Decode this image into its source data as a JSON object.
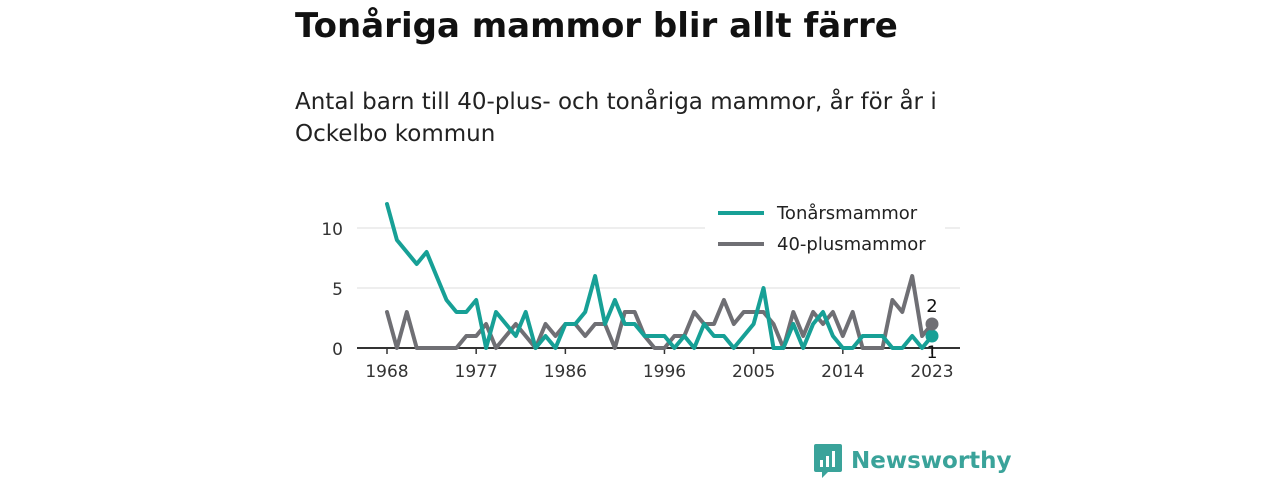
{
  "title": "Tonåriga mammor blir allt färre",
  "subtitle": "Antal barn till 40-plus- och tonåriga mammor, år för år i Ockelbo kommun",
  "brand": {
    "name": "Newsworthy",
    "color": "#3aa39a"
  },
  "chart_data": {
    "type": "line",
    "x": [
      1968,
      1969,
      1970,
      1971,
      1972,
      1973,
      1974,
      1975,
      1976,
      1977,
      1978,
      1979,
      1980,
      1981,
      1982,
      1983,
      1984,
      1985,
      1986,
      1987,
      1988,
      1989,
      1990,
      1991,
      1992,
      1993,
      1994,
      1995,
      1996,
      1997,
      1998,
      1999,
      2000,
      2001,
      2002,
      2003,
      2004,
      2005,
      2006,
      2007,
      2008,
      2009,
      2010,
      2011,
      2012,
      2013,
      2014,
      2015,
      2016,
      2017,
      2018,
      2019,
      2020,
      2021,
      2022,
      2023
    ],
    "series": [
      {
        "name": "Tonårsmammor",
        "color": "#17a096",
        "values": [
          12,
          9,
          8,
          7,
          8,
          6,
          4,
          3,
          3,
          4,
          0,
          3,
          2,
          1,
          3,
          0,
          1,
          0,
          2,
          2,
          3,
          6,
          2,
          4,
          2,
          2,
          1,
          1,
          1,
          0,
          1,
          0,
          2,
          1,
          1,
          0,
          1,
          2,
          5,
          0,
          0,
          2,
          0,
          2,
          3,
          1,
          0,
          0,
          1,
          1,
          1,
          0,
          0,
          1,
          0,
          1
        ]
      },
      {
        "name": "40-plusmammor",
        "color": "#6f6f74",
        "values": [
          3,
          0,
          3,
          0,
          0,
          0,
          0,
          0,
          1,
          1,
          2,
          0,
          1,
          2,
          1,
          0,
          2,
          1,
          2,
          2,
          1,
          2,
          2,
          0,
          3,
          3,
          1,
          0,
          0,
          1,
          1,
          3,
          2,
          2,
          4,
          2,
          3,
          3,
          3,
          2,
          0,
          3,
          1,
          3,
          2,
          3,
          1,
          3,
          0,
          0,
          0,
          4,
          3,
          6,
          1,
          2
        ]
      }
    ],
    "xticks": [
      "1968",
      "1977",
      "1986",
      "1996",
      "2005",
      "2014",
      "2023"
    ],
    "yticks": [
      "0",
      "5",
      "10"
    ],
    "xlim": [
      1967,
      2025
    ],
    "ylim": [
      0,
      12
    ],
    "legend_position": "top-right",
    "end_labels": [
      "1",
      "2"
    ],
    "grid": "horizontal"
  }
}
